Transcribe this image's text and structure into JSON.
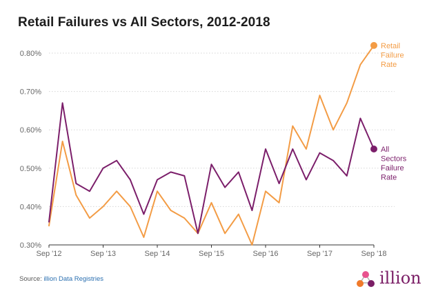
{
  "title": "Retail Failures vs All Sectors, 2012-2018",
  "source": {
    "label": "Source:",
    "name": "illion Data Registries"
  },
  "logo": {
    "text": "illion",
    "icon": "illion-molecule-logo-icon"
  },
  "colors": {
    "retail": "#f39c45",
    "all_sectors": "#7b1e6a",
    "logo_orange": "#f07a2a",
    "logo_pink": "#e8528e",
    "logo_purple": "#7b1e66"
  },
  "chart_data": {
    "type": "line",
    "title": "Retail Failures vs All Sectors, 2012-2018",
    "xlabel": "",
    "ylabel": "",
    "x_ticks": [
      "Sep '12",
      "Sep '13",
      "Sep '14",
      "Sep '15",
      "Sep '16",
      "Sep '17",
      "Sep '18"
    ],
    "y_ticks": [
      "0.30%",
      "0.40%",
      "0.50%",
      "0.60%",
      "0.70%",
      "0.80%"
    ],
    "ylim": [
      0.3,
      0.85
    ],
    "grid": true,
    "x_count": 25,
    "series": [
      {
        "name": "Retail Failure Rate",
        "label_lines": [
          "Retail",
          "Failure",
          "Rate"
        ],
        "color": "#f39c45",
        "values": [
          0.35,
          0.57,
          0.43,
          0.37,
          0.4,
          0.44,
          0.4,
          0.32,
          0.44,
          0.39,
          0.37,
          0.33,
          0.41,
          0.33,
          0.38,
          0.3,
          0.44,
          0.41,
          0.61,
          0.55,
          0.69,
          0.6,
          0.67,
          0.77,
          0.82
        ]
      },
      {
        "name": "All Sectors Failure Rate",
        "label_lines": [
          "All",
          "Sectors",
          "Failure",
          "Rate"
        ],
        "color": "#7b1e6a",
        "values": [
          0.36,
          0.67,
          0.46,
          0.44,
          0.5,
          0.52,
          0.47,
          0.38,
          0.47,
          0.49,
          0.48,
          0.33,
          0.51,
          0.45,
          0.49,
          0.39,
          0.55,
          0.46,
          0.55,
          0.47,
          0.54,
          0.52,
          0.48,
          0.63,
          0.55
        ]
      }
    ]
  }
}
